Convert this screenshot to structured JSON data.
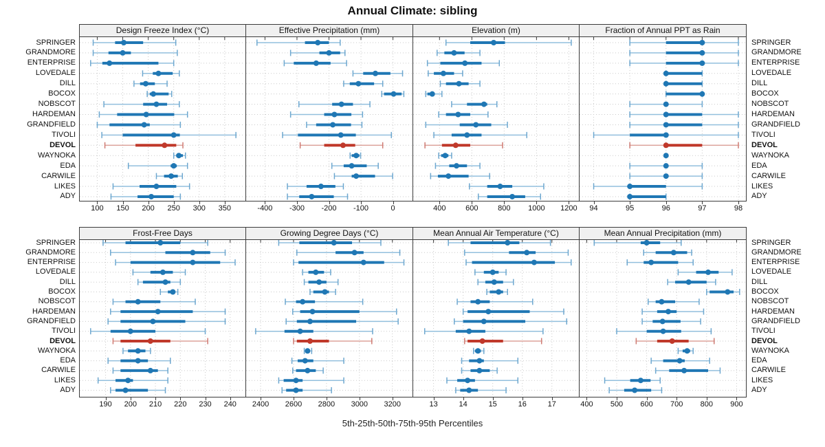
{
  "title": "Annual Climate: sibling",
  "xlabel": "5th-25th-50th-75th-95th Percentiles",
  "sites": [
    "SPRINGER",
    "GRANDMORE",
    "ENTERPRISE",
    "LOVEDALE",
    "DILL",
    "BOCOX",
    "NOBSCOT",
    "HARDEMAN",
    "GRANDFIELD",
    "TIVOLI",
    "DEVOL",
    "WAYNOKA",
    "EDA",
    "CARWILE",
    "LIKES",
    "ADY"
  ],
  "highlight_site": "DEVOL",
  "colors": {
    "blue": "#1f77b4",
    "blue_light": "#92bfdd",
    "blue_cap": "#6da7cf",
    "red": "#c0392b",
    "red_light": "#dda49c",
    "red_cap": "#cf7a72",
    "grid": "#c9c9c9",
    "border": "#3a3a3a",
    "strip_bg": "#f0f0f0",
    "text": "#111111"
  },
  "chart_data": {
    "type": "dot-whisker",
    "percentiles": [
      "5th",
      "25th",
      "50th",
      "75th",
      "95th"
    ],
    "layout": {
      "columns": 4,
      "rows": 2,
      "grid": "dotted",
      "legend": "none"
    },
    "panels": [
      {
        "title": "Design Freeze Index (°C)",
        "band": "top",
        "xlim": [
          65,
          390
        ],
        "ticks": [
          100,
          150,
          200,
          250,
          300,
          350
        ],
        "values": {
          "SPRINGER": [
            92,
            135,
            152,
            190,
            254
          ],
          "GRANDMORE": [
            92,
            122,
            150,
            166,
            257
          ],
          "ENTERPRISE": [
            87,
            110,
            124,
            220,
            250
          ],
          "LOVEDALE": [
            189,
            209,
            220,
            248,
            261
          ],
          "DILL": [
            172,
            184,
            195,
            213,
            237
          ],
          "BOCOX": [
            198,
            203,
            210,
            240,
            246
          ],
          "NOBSCOT": [
            113,
            190,
            216,
            237,
            261
          ],
          "HARDEMAN": [
            104,
            139,
            196,
            251,
            277
          ],
          "GRANDFIELD": [
            100,
            124,
            192,
            203,
            263
          ],
          "TIVOLI": [
            109,
            150,
            250,
            262,
            372
          ],
          "DEVOL": [
            115,
            175,
            232,
            255,
            268
          ],
          "WAYNOKA": [
            250,
            255,
            260,
            268,
            273
          ],
          "EDA": [
            161,
            244,
            250,
            256,
            277
          ],
          "CARWILE": [
            216,
            231,
            245,
            258,
            267
          ],
          "LIKES": [
            131,
            183,
            216,
            255,
            281
          ],
          "ADY": [
            127,
            179,
            206,
            250,
            263
          ]
        }
      },
      {
        "title": "Effective Precipitation (mm)",
        "band": "top",
        "xlim": [
          -460,
          60
        ],
        "ticks": [
          -400,
          -300,
          -200,
          -100,
          0
        ],
        "values": {
          "SPRINGER": [
            -425,
            -275,
            -235,
            -200,
            -165
          ],
          "GRANDMORE": [
            -320,
            -230,
            -200,
            -165,
            -150
          ],
          "ENTERPRISE": [
            -340,
            -310,
            -240,
            -195,
            -145
          ],
          "LOVEDALE": [
            -125,
            -93,
            -55,
            -8,
            30
          ],
          "DILL": [
            -154,
            -135,
            -108,
            -59,
            -32
          ],
          "BOCOX": [
            -35,
            -28,
            2,
            27,
            34
          ],
          "NOBSCOT": [
            -294,
            -190,
            -161,
            -125,
            -72
          ],
          "HARDEMAN": [
            -320,
            -215,
            -183,
            -130,
            -95
          ],
          "GRANDFIELD": [
            -270,
            -240,
            -188,
            -131,
            -97
          ],
          "TIVOLI": [
            -345,
            -297,
            -163,
            -116,
            -5
          ],
          "DEVOL": [
            -290,
            -215,
            -156,
            -118,
            -32
          ],
          "WAYNOKA": [
            -134,
            -129,
            -115,
            -105,
            -101
          ],
          "EDA": [
            -191,
            -154,
            -129,
            -82,
            -46
          ],
          "CARWILE": [
            -183,
            -129,
            -115,
            -56,
            -1
          ],
          "LIKES": [
            -330,
            -270,
            -225,
            -180,
            -155
          ],
          "ADY": [
            -330,
            -293,
            -254,
            -185,
            -142
          ]
        }
      },
      {
        "title": "Elevation (m)",
        "band": "top",
        "xlim": [
          235,
          1260
        ],
        "ticks": [
          400,
          600,
          800,
          1000,
          1200
        ],
        "values": {
          "SPRINGER": [
            440,
            590,
            735,
            805,
            1215
          ],
          "GRANDMORE": [
            385,
            430,
            490,
            555,
            650
          ],
          "ENTERPRISE": [
            325,
            405,
            557,
            660,
            770
          ],
          "LOVEDALE": [
            330,
            365,
            424,
            490,
            543
          ],
          "DILL": [
            405,
            440,
            520,
            580,
            650
          ],
          "BOCOX": [
            315,
            325,
            355,
            370,
            415
          ],
          "NOBSCOT": [
            475,
            570,
            675,
            695,
            755
          ],
          "HARDEMAN": [
            395,
            440,
            515,
            590,
            700
          ],
          "GRANDFIELD": [
            315,
            525,
            625,
            720,
            820
          ],
          "TIVOLI": [
            365,
            475,
            570,
            660,
            940
          ],
          "DEVOL": [
            310,
            415,
            500,
            590,
            790
          ],
          "WAYNOKA": [
            395,
            410,
            435,
            455,
            475
          ],
          "EDA": [
            375,
            460,
            505,
            570,
            650
          ],
          "CARWILE": [
            345,
            390,
            455,
            580,
            710
          ],
          "LIKES": [
            585,
            695,
            775,
            850,
            1045
          ],
          "ADY": [
            640,
            695,
            850,
            930,
            1025
          ]
        }
      },
      {
        "title": "Fraction of Annual PPT as Rain",
        "band": "top",
        "xlim": [
          93.6,
          98.2
        ],
        "ticks": [
          94,
          95,
          96,
          97,
          98
        ],
        "values": {
          "SPRINGER": [
            95,
            96,
            97,
            97,
            98
          ],
          "GRANDMORE": [
            95,
            96,
            97,
            97,
            98
          ],
          "ENTERPRISE": [
            95,
            96,
            97,
            97,
            98
          ],
          "LOVEDALE": [
            96,
            96,
            96,
            97,
            97
          ],
          "DILL": [
            96,
            96,
            96,
            97,
            97
          ],
          "BOCOX": [
            96,
            96,
            97,
            97,
            97
          ],
          "NOBSCOT": [
            95,
            96,
            96,
            96,
            97
          ],
          "HARDEMAN": [
            95,
            96,
            96,
            97,
            98
          ],
          "GRANDFIELD": [
            95,
            96,
            96,
            97,
            98
          ],
          "TIVOLI": [
            94,
            95,
            96,
            96,
            98
          ],
          "DEVOL": [
            95,
            96,
            96,
            97,
            98
          ],
          "WAYNOKA": [
            96,
            96,
            96,
            96,
            96
          ],
          "EDA": [
            95,
            96,
            96,
            96,
            97
          ],
          "CARWILE": [
            95,
            96,
            96,
            96,
            97
          ],
          "LIKES": [
            94,
            95,
            95,
            96,
            97
          ],
          "ADY": [
            95,
            95,
            95,
            96,
            96
          ]
        }
      },
      {
        "title": "Frost-Free Days",
        "band": "bottom",
        "xlim": [
          179.5,
          246
        ],
        "ticks": [
          190,
          200,
          210,
          220,
          230,
          240
        ],
        "values": {
          "SPRINGER": [
            189,
            198,
            212,
            220,
            231
          ],
          "GRANDMORE": [
            192,
            214,
            225,
            232,
            238
          ],
          "ENTERPRISE": [
            194,
            200,
            225,
            236,
            242
          ],
          "LOVEDALE": [
            201,
            208,
            213,
            217,
            222
          ],
          "DILL": [
            203,
            205,
            214,
            216,
            220
          ],
          "BOCOX": [
            212,
            215,
            217,
            218,
            219
          ],
          "NOBSCOT": [
            193,
            198,
            203,
            212,
            226
          ],
          "HARDEMAN": [
            192,
            196,
            211,
            225,
            238
          ],
          "GRANDFIELD": [
            191,
            196,
            209,
            222,
            238
          ],
          "TIVOLI": [
            184,
            192,
            200,
            210,
            230
          ],
          "DEVOL": [
            193,
            196,
            208,
            216,
            231
          ],
          "WAYNOKA": [
            197,
            199,
            203,
            206,
            208
          ],
          "EDA": [
            191,
            196,
            203,
            207,
            216
          ],
          "CARWILE": [
            193,
            196,
            208,
            211,
            215
          ],
          "LIKES": [
            187,
            194,
            199,
            201,
            215
          ],
          "ADY": [
            192,
            194,
            198,
            207,
            214
          ]
        }
      },
      {
        "title": "Growing Degree Days (°C)",
        "band": "bottom",
        "xlim": [
          2310,
          3320
        ],
        "ticks": [
          2400,
          2600,
          2800,
          3000,
          3200
        ],
        "values": {
          "SPRINGER": [
            2510,
            2635,
            2845,
            2955,
            3130
          ],
          "GRANDMORE": [
            2620,
            2855,
            2970,
            3025,
            3245
          ],
          "ENTERPRISE": [
            2600,
            2630,
            3025,
            3150,
            3270
          ],
          "LOVEDALE": [
            2655,
            2690,
            2735,
            2785,
            2825
          ],
          "DILL": [
            2665,
            2690,
            2755,
            2800,
            2870
          ],
          "BOCOX": [
            2700,
            2720,
            2790,
            2815,
            2855
          ],
          "NOBSCOT": [
            2550,
            2615,
            2655,
            2730,
            3020
          ],
          "HARDEMAN": [
            2595,
            2640,
            2715,
            3000,
            3225
          ],
          "GRANDFIELD": [
            2555,
            2620,
            2700,
            2980,
            3235
          ],
          "TIVOLI": [
            2370,
            2545,
            2640,
            2720,
            3080
          ],
          "DEVOL": [
            2600,
            2620,
            2700,
            2815,
            3075
          ],
          "WAYNOKA": [
            2665,
            2670,
            2685,
            2700,
            2710
          ],
          "EDA": [
            2590,
            2625,
            2670,
            2720,
            2905
          ],
          "CARWILE": [
            2595,
            2615,
            2685,
            2735,
            2780
          ],
          "LIKES": [
            2510,
            2540,
            2615,
            2655,
            2905
          ],
          "ADY": [
            2530,
            2555,
            2615,
            2655,
            2830
          ]
        }
      },
      {
        "title": "Mean Annual Air Temperature (°C)",
        "band": "bottom",
        "xlim": [
          12.3,
          17.9
        ],
        "ticks": [
          13,
          14,
          15,
          16,
          17
        ],
        "values": {
          "SPRINGER": [
            13.5,
            14.25,
            15.5,
            15.9,
            16.95
          ],
          "GRANDMORE": [
            14.05,
            15.55,
            16.15,
            16.45,
            17.55
          ],
          "ENTERPRISE": [
            14.1,
            14.3,
            16.4,
            17.1,
            17.65
          ],
          "LOVEDALE": [
            14.4,
            14.7,
            15.0,
            15.2,
            15.45
          ],
          "DILL": [
            14.5,
            14.75,
            15.05,
            15.35,
            15.7
          ],
          "BOCOX": [
            14.8,
            14.9,
            15.2,
            15.35,
            15.5
          ],
          "NOBSCOT": [
            13.8,
            14.25,
            14.5,
            14.9,
            16.35
          ],
          "HARDEMAN": [
            14.0,
            14.15,
            14.85,
            16.25,
            17.4
          ],
          "GRANDFIELD": [
            13.7,
            14.0,
            14.7,
            16.1,
            17.5
          ],
          "TIVOLI": [
            12.7,
            13.75,
            14.2,
            14.75,
            16.7
          ],
          "DEVOL": [
            14.05,
            14.15,
            14.65,
            15.35,
            16.65
          ],
          "WAYNOKA": [
            14.35,
            14.4,
            14.5,
            14.6,
            14.7
          ],
          "EDA": [
            13.95,
            14.2,
            14.55,
            14.7,
            15.85
          ],
          "CARWILE": [
            13.95,
            14.25,
            14.55,
            14.9,
            15.15
          ],
          "LIKES": [
            13.45,
            13.8,
            14.15,
            14.4,
            15.85
          ],
          "ADY": [
            13.75,
            13.9,
            14.2,
            14.5,
            15.45
          ]
        }
      },
      {
        "title": "Mean Annual Precipitation (mm)",
        "band": "bottom",
        "xlim": [
          375,
          930
        ],
        "ticks": [
          400,
          500,
          600,
          700,
          800,
          900
        ],
        "values": {
          "SPRINGER": [
            425,
            580,
            600,
            645,
            715
          ],
          "GRANDMORE": [
            590,
            630,
            690,
            735,
            750
          ],
          "ENTERPRISE": [
            535,
            590,
            615,
            705,
            755
          ],
          "LOVEDALE": [
            705,
            765,
            805,
            840,
            885
          ],
          "DILL": [
            670,
            695,
            740,
            800,
            830
          ],
          "BOCOX": [
            800,
            810,
            870,
            890,
            910
          ],
          "NOBSCOT": [
            605,
            630,
            650,
            695,
            775
          ],
          "HARDEMAN": [
            585,
            635,
            672,
            700,
            790
          ],
          "GRANDFIELD": [
            585,
            620,
            653,
            713,
            780
          ],
          "TIVOLI": [
            500,
            600,
            655,
            715,
            815
          ],
          "DEVOL": [
            565,
            635,
            685,
            740,
            825
          ],
          "WAYNOKA": [
            705,
            720,
            735,
            745,
            755
          ],
          "EDA": [
            615,
            655,
            710,
            727,
            810
          ],
          "CARWILE": [
            630,
            675,
            725,
            805,
            845
          ],
          "LIKES": [
            460,
            545,
            580,
            613,
            645
          ],
          "ADY": [
            475,
            525,
            560,
            615,
            650
          ]
        }
      }
    ]
  }
}
